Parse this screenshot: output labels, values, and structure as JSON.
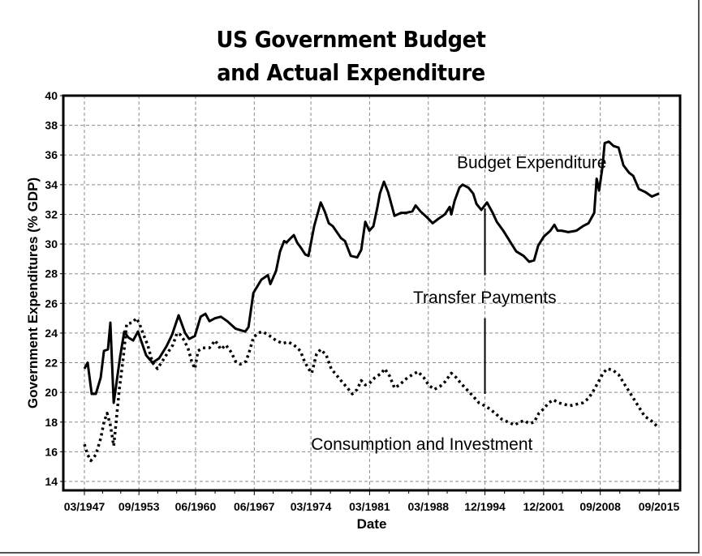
{
  "chart_data": {
    "type": "line",
    "title": [
      "US Government Budget",
      "and Actual Expenditure"
    ],
    "xlabel": "Date",
    "ylabel": "Government Expenditures (% GDP)",
    "ylim": [
      14,
      40
    ],
    "yticks": [
      14,
      16,
      18,
      20,
      22,
      24,
      26,
      28,
      30,
      32,
      34,
      36,
      38,
      40
    ],
    "xlim": [
      1944.7,
      2017.6
    ],
    "xticks": [
      {
        "label": "03/1947",
        "value": 1947.17
      },
      {
        "label": "09/1953",
        "value": 1953.67
      },
      {
        "label": "06/1960",
        "value": 1960.42
      },
      {
        "label": "06/1967",
        "value": 1967.42
      },
      {
        "label": "03/1974",
        "value": 1974.17
      },
      {
        "label": "03/1981",
        "value": 1981.17
      },
      {
        "label": "03/1988",
        "value": 1988.17
      },
      {
        "label": "12/1994",
        "value": 1994.92
      },
      {
        "label": "12/2001",
        "value": 2001.92
      },
      {
        "label": "09/2008",
        "value": 2008.67
      },
      {
        "label": "09/2015",
        "value": 2015.67
      }
    ],
    "grid": true,
    "annotations": [
      {
        "text": "Budget Expenditure",
        "x": 2000.5,
        "y": 35.5
      },
      {
        "text": "Transfer Payments",
        "x": 1994.9,
        "y": 26.4
      },
      {
        "text": "Consumption and Investment",
        "x": 1987.4,
        "y": 16.5
      }
    ],
    "marker_line": {
      "x": 1994.92,
      "y_from": 19.9,
      "y_to": 32.4,
      "gap_from": 25.0,
      "gap_to": 27.9
    },
    "series": [
      {
        "name": "Budget Expenditure",
        "style": "solid",
        "points": [
          [
            1947.17,
            21.6
          ],
          [
            1947.56,
            22.0
          ],
          [
            1948.04,
            19.9
          ],
          [
            1948.53,
            19.9
          ],
          [
            1949.11,
            21.0
          ],
          [
            1949.5,
            22.8
          ],
          [
            1949.98,
            22.9
          ],
          [
            1950.27,
            24.7
          ],
          [
            1950.66,
            19.3
          ],
          [
            1951.43,
            22.4
          ],
          [
            1951.92,
            24.1
          ],
          [
            1952.4,
            23.7
          ],
          [
            1952.98,
            23.5
          ],
          [
            1953.56,
            24.1
          ],
          [
            1954.53,
            22.5
          ],
          [
            1955.3,
            22.0
          ],
          [
            1956.08,
            22.3
          ],
          [
            1956.95,
            23.1
          ],
          [
            1957.63,
            23.9
          ],
          [
            1958.4,
            25.2
          ],
          [
            1959.18,
            24.0
          ],
          [
            1959.66,
            23.6
          ],
          [
            1960.34,
            23.8
          ],
          [
            1961.02,
            25.1
          ],
          [
            1961.6,
            25.3
          ],
          [
            1962.08,
            24.8
          ],
          [
            1962.76,
            25.0
          ],
          [
            1963.44,
            25.1
          ],
          [
            1964.21,
            24.8
          ],
          [
            1965.18,
            24.3
          ],
          [
            1965.76,
            24.2
          ],
          [
            1966.34,
            24.1
          ],
          [
            1966.73,
            24.4
          ],
          [
            1967.31,
            26.7
          ],
          [
            1968.27,
            27.6
          ],
          [
            1969.05,
            27.9
          ],
          [
            1969.34,
            27.3
          ],
          [
            1970.02,
            28.2
          ],
          [
            1970.5,
            29.5
          ],
          [
            1970.98,
            30.2
          ],
          [
            1971.27,
            30.1
          ],
          [
            1971.76,
            30.4
          ],
          [
            1972.14,
            30.6
          ],
          [
            1972.53,
            30.1
          ],
          [
            1972.92,
            29.8
          ],
          [
            1973.5,
            29.3
          ],
          [
            1973.88,
            29.2
          ],
          [
            1974.56,
            31.2
          ],
          [
            1975.34,
            32.8
          ],
          [
            1975.82,
            32.2
          ],
          [
            1976.3,
            31.4
          ],
          [
            1976.79,
            31.2
          ],
          [
            1977.27,
            30.8
          ],
          [
            1977.76,
            30.4
          ],
          [
            1978.24,
            30.2
          ],
          [
            1978.92,
            29.2
          ],
          [
            1979.69,
            29.1
          ],
          [
            1980.17,
            29.6
          ],
          [
            1980.66,
            31.5
          ],
          [
            1981.14,
            30.9
          ],
          [
            1981.62,
            31.2
          ],
          [
            1982.11,
            32.5
          ],
          [
            1982.4,
            33.4
          ],
          [
            1982.88,
            34.2
          ],
          [
            1983.37,
            33.5
          ],
          [
            1984.14,
            31.9
          ],
          [
            1984.91,
            32.1
          ],
          [
            1985.49,
            32.1
          ],
          [
            1986.27,
            32.2
          ],
          [
            1986.65,
            32.6
          ],
          [
            1987.23,
            32.2
          ],
          [
            1988.01,
            31.8
          ],
          [
            1988.69,
            31.4
          ],
          [
            1989.36,
            31.7
          ],
          [
            1990.14,
            32.0
          ],
          [
            1990.72,
            32.5
          ],
          [
            1990.91,
            32.0
          ],
          [
            1991.3,
            32.9
          ],
          [
            1991.88,
            33.8
          ],
          [
            1992.26,
            34.0
          ],
          [
            1992.94,
            33.8
          ],
          [
            1993.52,
            33.4
          ],
          [
            1993.91,
            32.7
          ],
          [
            1994.49,
            32.3
          ],
          [
            1995.17,
            32.8
          ],
          [
            1995.85,
            32.1
          ],
          [
            1996.33,
            31.5
          ],
          [
            1997.1,
            30.9
          ],
          [
            1997.88,
            30.2
          ],
          [
            1998.65,
            29.5
          ],
          [
            1999.52,
            29.2
          ],
          [
            2000.2,
            28.8
          ],
          [
            2000.78,
            28.9
          ],
          [
            2001.27,
            29.9
          ],
          [
            2001.94,
            30.5
          ],
          [
            2002.72,
            30.9
          ],
          [
            2003.2,
            31.3
          ],
          [
            2003.59,
            30.9
          ],
          [
            2004.07,
            30.9
          ],
          [
            2004.85,
            30.8
          ],
          [
            2005.82,
            30.9
          ],
          [
            2006.59,
            31.2
          ],
          [
            2007.27,
            31.4
          ],
          [
            2007.95,
            32.1
          ],
          [
            2008.24,
            34.4
          ],
          [
            2008.53,
            33.6
          ],
          [
            2008.91,
            35.1
          ],
          [
            2009.2,
            36.8
          ],
          [
            2009.69,
            36.9
          ],
          [
            2010.27,
            36.6
          ],
          [
            2010.85,
            36.5
          ],
          [
            2011.43,
            35.3
          ],
          [
            2012.11,
            34.8
          ],
          [
            2012.59,
            34.6
          ],
          [
            2013.27,
            33.7
          ],
          [
            2014.04,
            33.5
          ],
          [
            2014.82,
            33.2
          ],
          [
            2015.67,
            33.4
          ]
        ]
      },
      {
        "name": "Consumption and Investment",
        "style": "dotted",
        "points": [
          [
            1947.17,
            16.5
          ],
          [
            1947.56,
            15.8
          ],
          [
            1947.94,
            15.4
          ],
          [
            1948.53,
            15.8
          ],
          [
            1949.11,
            16.9
          ],
          [
            1949.5,
            18.0
          ],
          [
            1949.88,
            18.6
          ],
          [
            1950.27,
            17.8
          ],
          [
            1950.66,
            16.4
          ],
          [
            1950.95,
            18.0
          ],
          [
            1951.33,
            20.2
          ],
          [
            1951.82,
            22.4
          ],
          [
            1952.2,
            24.6
          ],
          [
            1952.88,
            24.7
          ],
          [
            1953.37,
            25.0
          ],
          [
            1953.75,
            24.6
          ],
          [
            1954.14,
            24.0
          ],
          [
            1954.72,
            23.2
          ],
          [
            1955.3,
            22.0
          ],
          [
            1955.88,
            21.6
          ],
          [
            1956.46,
            22.1
          ],
          [
            1957.14,
            22.7
          ],
          [
            1957.72,
            23.2
          ],
          [
            1958.21,
            24.0
          ],
          [
            1958.59,
            23.9
          ],
          [
            1959.08,
            23.5
          ],
          [
            1959.56,
            22.9
          ],
          [
            1959.95,
            22.1
          ],
          [
            1960.34,
            21.6
          ],
          [
            1960.72,
            22.8
          ],
          [
            1961.3,
            23.0
          ],
          [
            1962.08,
            23.0
          ],
          [
            1962.76,
            23.5
          ],
          [
            1963.44,
            22.9
          ],
          [
            1964.02,
            23.2
          ],
          [
            1964.69,
            22.7
          ],
          [
            1965.18,
            22.1
          ],
          [
            1965.76,
            21.9
          ],
          [
            1966.44,
            22.1
          ],
          [
            1966.92,
            22.9
          ],
          [
            1967.31,
            23.7
          ],
          [
            1967.89,
            24.0
          ],
          [
            1968.37,
            24.1
          ],
          [
            1969.05,
            23.9
          ],
          [
            1970.02,
            23.5
          ],
          [
            1970.79,
            23.3
          ],
          [
            1971.47,
            23.4
          ],
          [
            1972.14,
            23.2
          ],
          [
            1972.92,
            22.8
          ],
          [
            1973.4,
            22.1
          ],
          [
            1973.88,
            21.6
          ],
          [
            1974.27,
            21.3
          ],
          [
            1974.85,
            22.6
          ],
          [
            1975.34,
            22.9
          ],
          [
            1976.01,
            22.5
          ],
          [
            1976.59,
            21.6
          ],
          [
            1977.17,
            21.2
          ],
          [
            1977.75,
            20.8
          ],
          [
            1978.53,
            20.3
          ],
          [
            1979.11,
            19.9
          ],
          [
            1979.69,
            20.2
          ],
          [
            1980.17,
            20.8
          ],
          [
            1980.66,
            20.5
          ],
          [
            1981.14,
            20.6
          ],
          [
            1981.82,
            21.0
          ],
          [
            1982.59,
            21.3
          ],
          [
            1982.98,
            21.6
          ],
          [
            1983.56,
            21.1
          ],
          [
            1984.14,
            20.3
          ],
          [
            1984.72,
            20.5
          ],
          [
            1985.49,
            20.9
          ],
          [
            1986.27,
            21.2
          ],
          [
            1986.94,
            21.4
          ],
          [
            1987.62,
            21.0
          ],
          [
            1988.2,
            20.5
          ],
          [
            1988.88,
            20.2
          ],
          [
            1989.56,
            20.4
          ],
          [
            1990.14,
            20.7
          ],
          [
            1990.91,
            21.3
          ],
          [
            1991.49,
            21.0
          ],
          [
            1992.07,
            20.6
          ],
          [
            1992.75,
            20.2
          ],
          [
            1993.42,
            19.8
          ],
          [
            1994.2,
            19.3
          ],
          [
            1994.88,
            19.1
          ],
          [
            1995.46,
            18.9
          ],
          [
            1996.14,
            18.6
          ],
          [
            1996.91,
            18.2
          ],
          [
            1997.68,
            18.0
          ],
          [
            1998.46,
            17.8
          ],
          [
            1999.04,
            18.0
          ],
          [
            1999.62,
            18.1
          ],
          [
            2000.2,
            17.9
          ],
          [
            2000.78,
            18.0
          ],
          [
            2001.36,
            18.6
          ],
          [
            2001.94,
            18.9
          ],
          [
            2002.52,
            19.3
          ],
          [
            2003.1,
            19.5
          ],
          [
            2003.68,
            19.3
          ],
          [
            2004.36,
            19.2
          ],
          [
            2005.04,
            19.1
          ],
          [
            2005.82,
            19.2
          ],
          [
            2006.59,
            19.3
          ],
          [
            2007.27,
            19.6
          ],
          [
            2007.95,
            20.2
          ],
          [
            2008.43,
            20.7
          ],
          [
            2009.01,
            21.3
          ],
          [
            2009.49,
            21.6
          ],
          [
            2010.17,
            21.5
          ],
          [
            2010.85,
            21.2
          ],
          [
            2011.62,
            20.5
          ],
          [
            2012.4,
            19.8
          ],
          [
            2013.17,
            19.1
          ],
          [
            2013.95,
            18.4
          ],
          [
            2014.72,
            18.1
          ],
          [
            2015.49,
            17.7
          ]
        ]
      }
    ]
  }
}
